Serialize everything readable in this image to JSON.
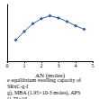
{
  "chart_data": {
    "type": "line",
    "x_label": "AN (moles)",
    "annotations": [
      "e equilibrium swelling capacity of SRxC-g-I",
      "g), MBA (1.95×10-3 moles), APS (1.75×10-"
    ],
    "x": [
      0.5,
      1,
      1.5,
      2,
      2.5,
      3,
      3.5,
      4,
      4.5
    ],
    "values": [
      150,
      210,
      265,
      300,
      320,
      305,
      280,
      250,
      225
    ],
    "color": "#2f5fa8",
    "marker": "diamond",
    "xlim": [
      0,
      5
    ],
    "xticks": [
      0,
      1,
      2,
      3,
      4,
      5
    ],
    "ylim": [
      0,
      400
    ],
    "tick_labels": "x",
    "grid": false
  }
}
